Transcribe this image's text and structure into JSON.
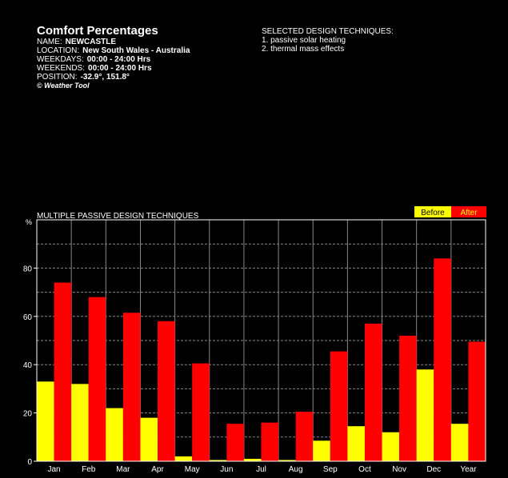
{
  "header": {
    "title": "Comfort Percentages",
    "name_label": "NAME:",
    "name_value": "NEWCASTLE",
    "location_label": "LOCATION:",
    "location_value": "New South Wales - Australia",
    "weekdays_label": "WEEKDAYS:",
    "weekdays_value": "00:00 - 24:00 Hrs",
    "weekends_label": "WEEKENDS:",
    "weekends_value": "00:00 - 24:00 Hrs",
    "position_label": "POSITION:",
    "position_value": "-32.9°, 151.8°",
    "credit": "© Weather Tool"
  },
  "techniques": {
    "heading": "SELECTED DESIGN TECHNIQUES:",
    "items": [
      "1. passive solar heating",
      "2. thermal mass effects"
    ]
  },
  "colors": {
    "before": "#ffff00",
    "after": "#ff0000",
    "background": "#000000",
    "axis": "#ffffff",
    "grid": "#888888"
  },
  "chart_data": {
    "type": "bar",
    "title": "MULTIPLE PASSIVE DESIGN TECHNIQUES",
    "ylabel": "%",
    "ylim": [
      0,
      100
    ],
    "yticks": [
      0,
      20,
      40,
      60,
      80
    ],
    "grid": true,
    "legend_position": "top-right",
    "categories": [
      "Jan",
      "Feb",
      "Mar",
      "Apr",
      "May",
      "Jun",
      "Jul",
      "Aug",
      "Sep",
      "Oct",
      "Nov",
      "Dec",
      "Year"
    ],
    "series": [
      {
        "name": "Before",
        "values": [
          33,
          32,
          22,
          18,
          2,
          0.5,
          1,
          0.5,
          8.5,
          14.5,
          12,
          38,
          15.5
        ]
      },
      {
        "name": "After",
        "values": [
          74,
          68,
          61.5,
          58,
          40.5,
          15.5,
          16,
          20.5,
          45.5,
          57,
          52,
          84,
          49.5
        ]
      }
    ]
  }
}
